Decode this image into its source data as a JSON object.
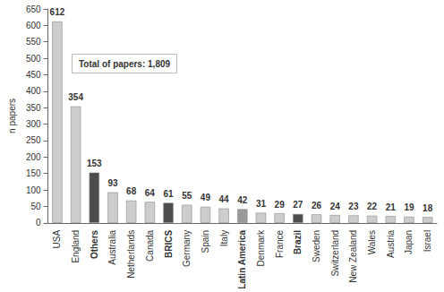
{
  "chart_data": {
    "type": "bar",
    "y_label": "n papers",
    "annotation": "Total of papers: 1,809",
    "categories": [
      "USA",
      "England",
      "Others",
      "Australia",
      "Netherlands",
      "Canada",
      "BRICS",
      "Germany",
      "Spain",
      "Italy",
      "Latin America",
      "Denmark",
      "France",
      "Brazil",
      "Sweden",
      "Switzerland",
      "New Zealand",
      "Wales",
      "Austria",
      "Japan",
      "Israel"
    ],
    "values": [
      612,
      354,
      153,
      93,
      68,
      64,
      61,
      55,
      49,
      44,
      42,
      31,
      29,
      27,
      26,
      24,
      23,
      22,
      21,
      19,
      18
    ],
    "colors": [
      "#cdcdcd",
      "#cdcdcd",
      "#4d4d4d",
      "#cdcdcd",
      "#cdcdcd",
      "#cdcdcd",
      "#4d4d4d",
      "#cdcdcd",
      "#cdcdcd",
      "#cdcdcd",
      "#9a9a9a",
      "#cdcdcd",
      "#cdcdcd",
      "#4d4d4d",
      "#cdcdcd",
      "#cdcdcd",
      "#cdcdcd",
      "#cdcdcd",
      "#cdcdcd",
      "#cdcdcd",
      "#cdcdcd"
    ],
    "ylim": [
      0,
      650
    ],
    "yticks": [
      0,
      50,
      100,
      150,
      200,
      250,
      300,
      350,
      400,
      450,
      500,
      550,
      600,
      650
    ],
    "grid": false,
    "data_labels": true
  }
}
